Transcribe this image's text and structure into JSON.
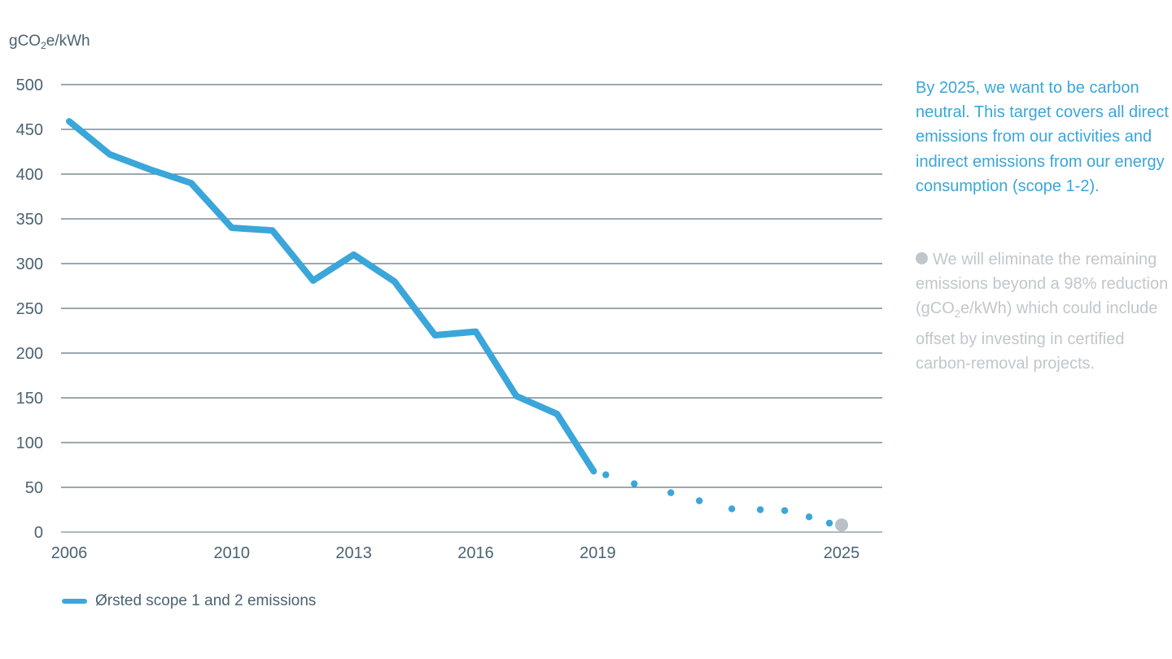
{
  "chart_data": {
    "type": "line",
    "y_unit_parts": [
      "gCO",
      "2",
      "e/kWh"
    ],
    "ylim": [
      0,
      500
    ],
    "y_ticks": [
      0,
      50,
      100,
      150,
      200,
      250,
      300,
      350,
      400,
      450,
      500
    ],
    "xlim": [
      2005.8,
      2026
    ],
    "x_tick_labels": [
      2006,
      2010,
      2013,
      2016,
      2019,
      2025
    ],
    "grid": true,
    "legend_placement": "bottom-left",
    "series": [
      {
        "name": "Ørsted scope 1 and 2 emissions",
        "color": "#3aa6da",
        "style": "solid",
        "points": [
          [
            2006,
            459
          ],
          [
            2007,
            422
          ],
          [
            2008,
            405
          ],
          [
            2009,
            390
          ],
          [
            2010,
            340
          ],
          [
            2011,
            337
          ],
          [
            2012,
            281
          ],
          [
            2013,
            310
          ],
          [
            2014,
            280
          ],
          [
            2015,
            220
          ],
          [
            2016,
            224
          ],
          [
            2017,
            152
          ],
          [
            2018,
            132
          ],
          [
            2018.9,
            68
          ]
        ]
      },
      {
        "name": "",
        "color": "#3aa6da",
        "style": "dotted",
        "points": [
          [
            2019.2,
            64
          ],
          [
            2019.9,
            54
          ],
          [
            2020.8,
            44
          ],
          [
            2021.5,
            35
          ],
          [
            2022.3,
            26
          ],
          [
            2023.0,
            25
          ],
          [
            2023.6,
            24
          ],
          [
            2024.2,
            17
          ],
          [
            2024.7,
            10
          ]
        ]
      }
    ],
    "target_marker": {
      "x": 2025,
      "y": 8,
      "color": "#b8c1c7"
    }
  },
  "side_note": {
    "main": "By 2025, we want to be carbon neutral. This target covers all direct emissions from our activities and indirect emissions from our energy consumption (scope 1-2).",
    "secondary_part1": "We will eliminate the remaining emissions beyond a 98% reduction (gCO",
    "secondary_sub": "2",
    "secondary_part2": "e/kWh) which could include offset by investing in certified carbon-removal projects."
  },
  "legend": {
    "label": "Ørsted scope 1 and 2 emissions"
  }
}
